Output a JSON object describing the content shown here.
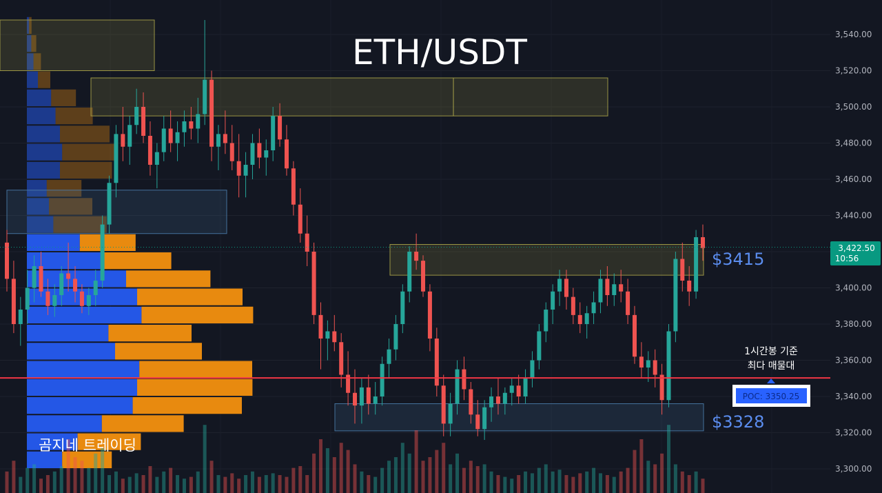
{
  "chart_data": {
    "type": "candlestick",
    "title": "ETH/USDT",
    "y_axis": {
      "range": [
        3295,
        3555
      ],
      "ticks": [
        3300,
        3320,
        3340,
        3360,
        3380,
        3400,
        3420,
        3440,
        3460,
        3480,
        3500,
        3520,
        3540
      ],
      "tick_labels": [
        "3,300.00",
        "3,320.00",
        "3,340.00",
        "3,360.00",
        "3,380.00",
        "3,400.00",
        "3,420.00",
        "3,440.00",
        "3,460.00",
        "3,480.00",
        "3,500.00",
        "3,520.00",
        "3,540.00"
      ]
    },
    "last_price": {
      "value": 3422.5,
      "label": "3,422.50",
      "countdown": "10:56",
      "color": "#089981"
    },
    "poc": {
      "value": 3350.25,
      "label": "POC: 3350.25",
      "color": "#f23645",
      "badge_color": "#2962ff"
    },
    "poc_annotation": [
      "1시간봉 기준",
      "최다 매물대"
    ],
    "levels": [
      {
        "label": "$3415",
        "value": 3415,
        "color": "#5b8def"
      },
      {
        "label": "$3328",
        "value": 3328,
        "color": "#5b8def"
      }
    ],
    "zones": [
      {
        "kind": "supply",
        "top": 3548,
        "bottom": 3520
      },
      {
        "kind": "supply",
        "top": 3516,
        "bottom": 3495
      },
      {
        "kind": "demand",
        "top": 3454,
        "bottom": 3430
      },
      {
        "kind": "supply",
        "top": 3424,
        "bottom": 3407
      },
      {
        "kind": "demand",
        "top": 3336,
        "bottom": 3321
      }
    ],
    "volume_profile": [
      {
        "price": 3545,
        "buy": 1,
        "sell": 2
      },
      {
        "price": 3535,
        "buy": 2,
        "sell": 4
      },
      {
        "price": 3525,
        "buy": 3,
        "sell": 6
      },
      {
        "price": 3515,
        "buy": 5,
        "sell": 10
      },
      {
        "price": 3505,
        "buy": 11,
        "sell": 20
      },
      {
        "price": 3495,
        "buy": 13,
        "sell": 30
      },
      {
        "price": 3485,
        "buy": 15,
        "sell": 40
      },
      {
        "price": 3475,
        "buy": 16,
        "sell": 45
      },
      {
        "price": 3465,
        "buy": 15,
        "sell": 42
      },
      {
        "price": 3455,
        "buy": 9,
        "sell": 28
      },
      {
        "price": 3445,
        "buy": 10,
        "sell": 35
      },
      {
        "price": 3435,
        "buy": 12,
        "sell": 43
      },
      {
        "price": 3425,
        "buy": 24,
        "sell": 45
      },
      {
        "price": 3415,
        "buy": 34,
        "sell": 56
      },
      {
        "price": 3405,
        "buy": 45,
        "sell": 68
      },
      {
        "price": 3395,
        "buy": 50,
        "sell": 85
      },
      {
        "price": 3385,
        "buy": 52,
        "sell": 90
      },
      {
        "price": 3375,
        "buy": 37,
        "sell": 67
      },
      {
        "price": 3365,
        "buy": 40,
        "sell": 70
      },
      {
        "price": 3355,
        "buy": 51,
        "sell": 91
      },
      {
        "price": 3345,
        "buy": 50,
        "sell": 93
      },
      {
        "price": 3335,
        "buy": 48,
        "sell": 88
      },
      {
        "price": 3325,
        "buy": 34,
        "sell": 66
      },
      {
        "price": 3315,
        "buy": 23,
        "sell": 51
      },
      {
        "price": 3305,
        "buy": 16,
        "sell": 40
      }
    ],
    "candles": [
      [
        3425,
        3432,
        3398,
        3405
      ],
      [
        3405,
        3415,
        3375,
        3380
      ],
      [
        3380,
        3395,
        3368,
        3388
      ],
      [
        3388,
        3410,
        3380,
        3400
      ],
      [
        3400,
        3418,
        3392,
        3412
      ],
      [
        3412,
        3420,
        3395,
        3398
      ],
      [
        3398,
        3405,
        3385,
        3390
      ],
      [
        3390,
        3402,
        3384,
        3396
      ],
      [
        3396,
        3412,
        3390,
        3408
      ],
      [
        3408,
        3425,
        3398,
        3405
      ],
      [
        3405,
        3412,
        3392,
        3398
      ],
      [
        3398,
        3402,
        3386,
        3390
      ],
      [
        3390,
        3400,
        3385,
        3396
      ],
      [
        3396,
        3410,
        3390,
        3404
      ],
      [
        3404,
        3440,
        3400,
        3435
      ],
      [
        3435,
        3462,
        3430,
        3458
      ],
      [
        3458,
        3490,
        3450,
        3485
      ],
      [
        3485,
        3500,
        3470,
        3478
      ],
      [
        3478,
        3495,
        3468,
        3490
      ],
      [
        3490,
        3510,
        3485,
        3500
      ],
      [
        3500,
        3508,
        3480,
        3484
      ],
      [
        3484,
        3492,
        3462,
        3468
      ],
      [
        3468,
        3480,
        3455,
        3475
      ],
      [
        3475,
        3495,
        3470,
        3488
      ],
      [
        3488,
        3498,
        3475,
        3480
      ],
      [
        3480,
        3492,
        3470,
        3486
      ],
      [
        3486,
        3498,
        3478,
        3492
      ],
      [
        3492,
        3500,
        3482,
        3488
      ],
      [
        3488,
        3505,
        3480,
        3496
      ],
      [
        3496,
        3548,
        3490,
        3515
      ],
      [
        3515,
        3520,
        3470,
        3478
      ],
      [
        3478,
        3490,
        3465,
        3485
      ],
      [
        3485,
        3498,
        3474,
        3480
      ],
      [
        3480,
        3490,
        3465,
        3470
      ],
      [
        3470,
        3485,
        3450,
        3462
      ],
      [
        3462,
        3475,
        3450,
        3468
      ],
      [
        3468,
        3485,
        3460,
        3480
      ],
      [
        3480,
        3488,
        3466,
        3472
      ],
      [
        3472,
        3482,
        3462,
        3476
      ],
      [
        3476,
        3500,
        3470,
        3495
      ],
      [
        3495,
        3502,
        3478,
        3482
      ],
      [
        3482,
        3490,
        3462,
        3466
      ],
      [
        3466,
        3470,
        3440,
        3446
      ],
      [
        3446,
        3455,
        3425,
        3430
      ],
      [
        3430,
        3440,
        3412,
        3420
      ],
      [
        3420,
        3425,
        3380,
        3385
      ],
      [
        3385,
        3392,
        3355,
        3372
      ],
      [
        3372,
        3382,
        3360,
        3376
      ],
      [
        3376,
        3385,
        3365,
        3370
      ],
      [
        3370,
        3375,
        3345,
        3352
      ],
      [
        3352,
        3365,
        3335,
        3342
      ],
      [
        3342,
        3355,
        3325,
        3335
      ],
      [
        3335,
        3350,
        3325,
        3345
      ],
      [
        3345,
        3352,
        3330,
        3336
      ],
      [
        3336,
        3348,
        3330,
        3340
      ],
      [
        3340,
        3362,
        3335,
        3358
      ],
      [
        3358,
        3372,
        3350,
        3366
      ],
      [
        3366,
        3385,
        3360,
        3380
      ],
      [
        3380,
        3402,
        3375,
        3398
      ],
      [
        3398,
        3423,
        3392,
        3420
      ],
      [
        3420,
        3430,
        3410,
        3415
      ],
      [
        3415,
        3418,
        3395,
        3398
      ],
      [
        3398,
        3402,
        3365,
        3372
      ],
      [
        3372,
        3378,
        3340,
        3346
      ],
      [
        3346,
        3352,
        3318,
        3325
      ],
      [
        3325,
        3342,
        3318,
        3336
      ],
      [
        3336,
        3360,
        3330,
        3355
      ],
      [
        3355,
        3362,
        3338,
        3344
      ],
      [
        3344,
        3348,
        3325,
        3330
      ],
      [
        3330,
        3338,
        3318,
        3322
      ],
      [
        3322,
        3338,
        3316,
        3334
      ],
      [
        3334,
        3345,
        3326,
        3340
      ],
      [
        3340,
        3350,
        3330,
        3336
      ],
      [
        3336,
        3345,
        3330,
        3342
      ],
      [
        3342,
        3350,
        3335,
        3346
      ],
      [
        3346,
        3352,
        3336,
        3340
      ],
      [
        3340,
        3355,
        3336,
        3350
      ],
      [
        3350,
        3365,
        3345,
        3360
      ],
      [
        3360,
        3380,
        3355,
        3376
      ],
      [
        3376,
        3392,
        3370,
        3388
      ],
      [
        3388,
        3402,
        3380,
        3398
      ],
      [
        3398,
        3410,
        3390,
        3405
      ],
      [
        3405,
        3410,
        3388,
        3395
      ],
      [
        3395,
        3400,
        3380,
        3385
      ],
      [
        3385,
        3392,
        3375,
        3380
      ],
      [
        3380,
        3390,
        3372,
        3386
      ],
      [
        3386,
        3398,
        3380,
        3392
      ],
      [
        3392,
        3410,
        3386,
        3405
      ],
      [
        3405,
        3412,
        3390,
        3396
      ],
      [
        3396,
        3408,
        3390,
        3402
      ],
      [
        3402,
        3410,
        3392,
        3398
      ],
      [
        3398,
        3405,
        3380,
        3385
      ],
      [
        3385,
        3390,
        3358,
        3362
      ],
      [
        3362,
        3370,
        3350,
        3356
      ],
      [
        3356,
        3365,
        3348,
        3360
      ],
      [
        3360,
        3366,
        3345,
        3352
      ],
      [
        3352,
        3358,
        3330,
        3338
      ],
      [
        3338,
        3380,
        3334,
        3376
      ],
      [
        3376,
        3420,
        3370,
        3416
      ],
      [
        3416,
        3425,
        3398,
        3404
      ],
      [
        3404,
        3412,
        3390,
        3398
      ],
      [
        3398,
        3432,
        3394,
        3428
      ],
      [
        3428,
        3435,
        3415,
        3422
      ]
    ],
    "volume": [
      12,
      18,
      9,
      14,
      16,
      8,
      10,
      12,
      15,
      30,
      20,
      18,
      14,
      22,
      25,
      10,
      12,
      8,
      9,
      11,
      10,
      15,
      9,
      12,
      14,
      10,
      8,
      9,
      12,
      38,
      18,
      10,
      9,
      11,
      8,
      10,
      12,
      9,
      10,
      11,
      10,
      9,
      14,
      15,
      10,
      22,
      30,
      25,
      20,
      28,
      24,
      16,
      12,
      10,
      9,
      14,
      18,
      20,
      28,
      22,
      35,
      18,
      20,
      24,
      28,
      16,
      22,
      14,
      18,
      15,
      16,
      12,
      10,
      9,
      8,
      10,
      12,
      11,
      14,
      16,
      12,
      13,
      10,
      9,
      11,
      12,
      14,
      11,
      10,
      9,
      12,
      14,
      24,
      30,
      18,
      16,
      22,
      38,
      16,
      12,
      10,
      12,
      8
    ]
  },
  "watermark": "곰지네 트레이딩",
  "colors": {
    "background": "#131722",
    "up": "#26a69a",
    "down": "#ef5350",
    "vp_buy": "#2457e6",
    "vp_sell": "#e88a0f",
    "supply_zone": "#a8a248",
    "demand_zone": "#4a7aa8"
  }
}
